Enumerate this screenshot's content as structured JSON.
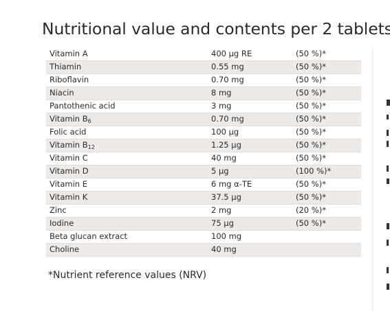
{
  "title": "Nutritional value and contents per 2 tablets:",
  "nutrients": [
    {
      "name": "Vitamin A",
      "amount": "400 µg RE",
      "percent": "(50 %)*"
    },
    {
      "name": "Thiamin",
      "amount": "0.55 mg",
      "percent": "(50 %)*"
    },
    {
      "name": "Riboflavin",
      "amount": "0.70 mg",
      "percent": "(50 %)*"
    },
    {
      "name": "Niacin",
      "amount": "8 mg",
      "percent": "(50 %)*"
    },
    {
      "name": "Pantothenic acid",
      "amount": "3 mg",
      "percent": "(50 %)*"
    },
    {
      "name": "Vitamin B",
      "sub": "6",
      "amount": "0.70 mg",
      "percent": "(50 %)*"
    },
    {
      "name": "Folic acid",
      "amount": "100 µg",
      "percent": "(50 %)*"
    },
    {
      "name": "Vitamin B",
      "sub": "12",
      "amount": "1.25 µg",
      "percent": "(50 %)*"
    },
    {
      "name": "Vitamin C",
      "amount": "40 mg",
      "percent": "(50 %)*"
    },
    {
      "name": "Vitamin D",
      "amount": "5 µg",
      "percent": "(100 %)*"
    },
    {
      "name": "Vitamin E",
      "amount": "6 mg α-TE",
      "percent": "(50 %)*"
    },
    {
      "name": "Vitamin K",
      "amount": "37.5 µg",
      "percent": "(50 %)*"
    },
    {
      "name": "Zinc",
      "amount": "2 mg",
      "percent": "(20 %)*"
    },
    {
      "name": "Iodine",
      "amount": "75 µg",
      "percent": "(50 %)*"
    },
    {
      "name": "Beta glucan extract",
      "amount": "100 mg",
      "percent": ""
    },
    {
      "name": "Choline",
      "amount": "40 mg",
      "percent": ""
    }
  ],
  "footnote": "*Nutrient reference values (NRV)",
  "colors": {
    "row_stripe": "#ece9e6",
    "text": "#2a2a2a",
    "divider": "#e6e6e6"
  }
}
